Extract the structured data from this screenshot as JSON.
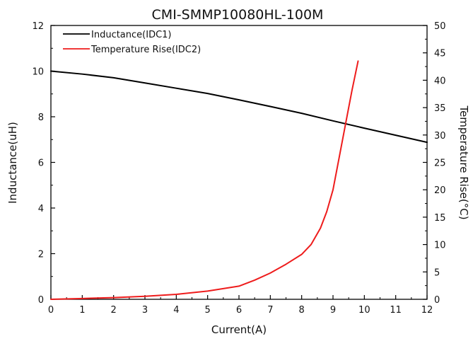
{
  "chart_data": {
    "type": "line",
    "title": "CMI-SMMP10080HL-100M",
    "xlabel": "Current(A)",
    "ylabel": "Inductance(uH)",
    "y2label": "Temperature Rise(°C)",
    "xlim": [
      0,
      12
    ],
    "ylim": [
      0,
      12
    ],
    "y2lim": [
      0,
      50
    ],
    "xticks": [
      "0",
      "1",
      "2",
      "3",
      "4",
      "5",
      "6",
      "7",
      "8",
      "9",
      "10",
      "11",
      "12"
    ],
    "yticks": [
      "0",
      "2",
      "4",
      "6",
      "8",
      "10",
      "12"
    ],
    "y2ticks": [
      "0",
      "5",
      "10",
      "15",
      "20",
      "25",
      "30",
      "35",
      "40",
      "45",
      "50"
    ],
    "grid": false,
    "legend_position": "top-left",
    "series": [
      {
        "name": "Inductance(IDC1)",
        "axis": "left",
        "color": "#000000",
        "x": [
          0,
          1,
          2,
          3,
          4,
          5,
          6,
          7,
          8,
          9,
          10,
          11,
          12
        ],
        "y": [
          10.0,
          9.87,
          9.71,
          9.48,
          9.25,
          9.02,
          8.74,
          8.45,
          8.15,
          7.82,
          7.5,
          7.19,
          6.88
        ]
      },
      {
        "name": "Temperature Rise(IDC2)",
        "axis": "right",
        "color": "#ee1c1c",
        "x": [
          0,
          1,
          2,
          3,
          4,
          5,
          6,
          6.5,
          7,
          7.5,
          8,
          8.3,
          8.6,
          8.8,
          9.0,
          9.2,
          9.4,
          9.6,
          9.8
        ],
        "y": [
          0,
          0.15,
          0.3,
          0.55,
          0.9,
          1.5,
          2.4,
          3.5,
          4.8,
          6.4,
          8.2,
          10.0,
          13.0,
          16.0,
          20.0,
          26.0,
          32.0,
          38.0,
          43.5
        ]
      }
    ]
  }
}
